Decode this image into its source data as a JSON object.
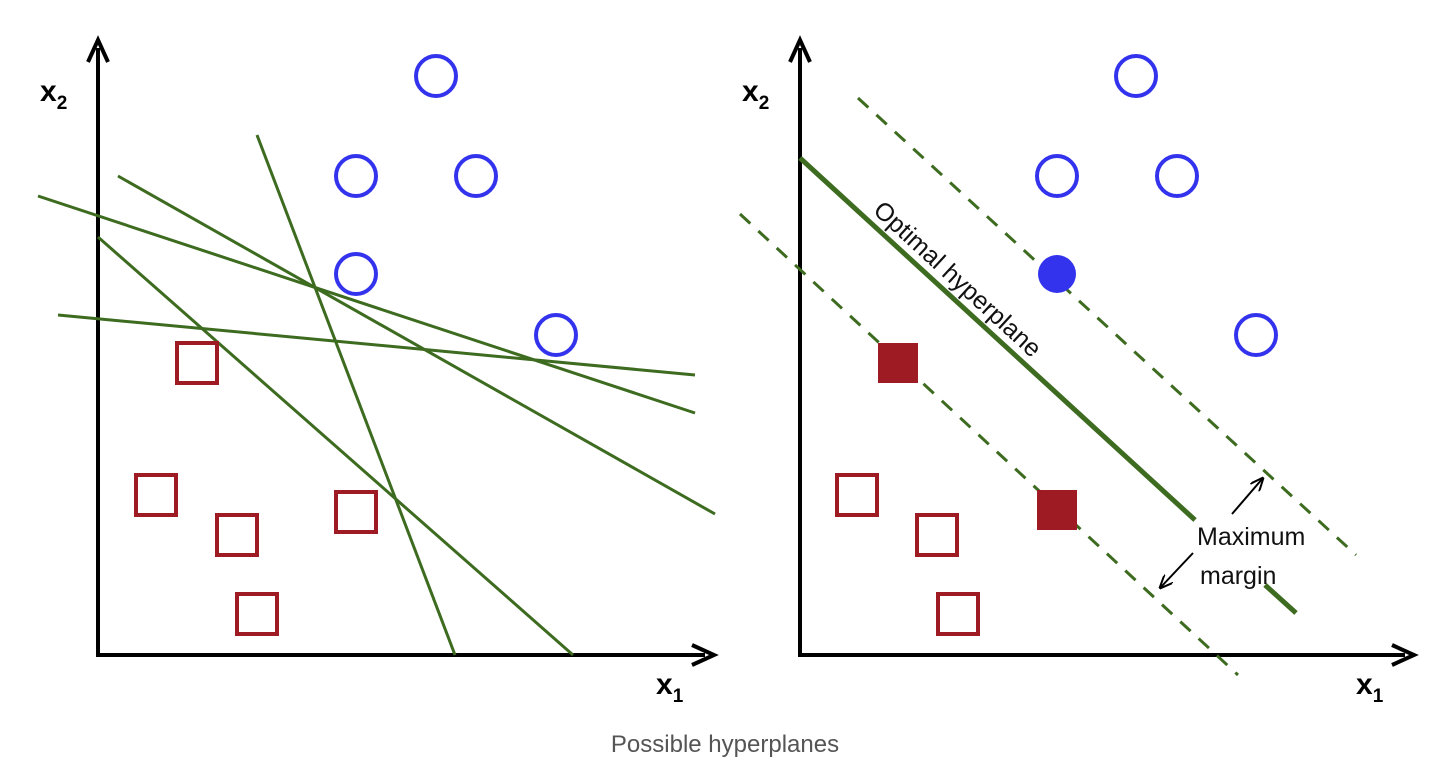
{
  "colors": {
    "axis": "#000000",
    "line": "#3d6b1f",
    "circle": "#3333ee",
    "square": "#9e1b24"
  },
  "left_panel": {
    "x_axis_label": "x",
    "x_axis_sub": "1",
    "y_axis_label": "x",
    "y_axis_sub": "2"
  },
  "right_panel": {
    "x_axis_label": "x",
    "x_axis_sub": "1",
    "y_axis_label": "x",
    "y_axis_sub": "2",
    "hyperplane_label": "Optimal hyperplane",
    "margin_label_line1": "Maximum",
    "margin_label_line2": "margin"
  },
  "caption": "Possible hyperplanes"
}
